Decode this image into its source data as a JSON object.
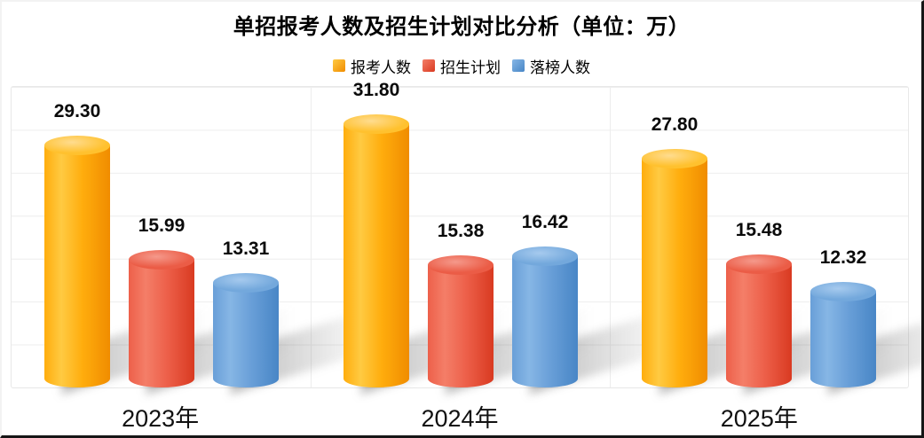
{
  "page": {
    "title": "单招报考人数及招生计划对比分析（单位：万）"
  },
  "chart_data": {
    "type": "bar",
    "subtype": "3d-cylinder",
    "title": "单招报考人数及招生计划对比分析（单位：万）",
    "unit": "万",
    "categories": [
      "2023年",
      "2024年",
      "2025年"
    ],
    "category_keys": [
      "2023",
      "2024",
      "2025"
    ],
    "series": [
      {
        "key": "applicants",
        "name": "报考人数",
        "values": [
          29.3,
          31.8,
          27.8
        ],
        "value_labels": [
          "29.30",
          "31.80",
          "27.80"
        ],
        "colors": {
          "main": "#FFAD0D",
          "light": "#FFCA42",
          "dark": "#F08C00",
          "cap": "#FFC12E",
          "cap_light": "#FFDC8F"
        }
      },
      {
        "key": "enrollment-plan",
        "name": "招生计划",
        "values": [
          15.99,
          15.38,
          15.48
        ],
        "value_labels": [
          "15.99",
          "15.38",
          "15.48"
        ],
        "colors": {
          "main": "#ED604A",
          "light": "#F47E68",
          "dark": "#D93A21",
          "cap": "#EB5C46",
          "cap_light": "#F5998B"
        }
      },
      {
        "key": "rejected",
        "name": "落榜人数",
        "values": [
          13.31,
          16.42,
          12.32
        ],
        "value_labels": [
          "13.31",
          "16.42",
          "12.32"
        ],
        "colors": {
          "main": "#699FD8",
          "light": "#86B6E5",
          "dark": "#4886C6",
          "cap": "#73A8DC",
          "cap_light": "#A6CAEE"
        }
      }
    ],
    "xlabel": "",
    "ylabel": "",
    "ylim": [
      0,
      35
    ],
    "y_gridline_step": 5,
    "y_axis_labels_visible": false,
    "grid": true,
    "legend_position": "top",
    "value_labels_visible": true,
    "grid_color": "#EDEDED",
    "frame_edge_color": "#161616"
  }
}
